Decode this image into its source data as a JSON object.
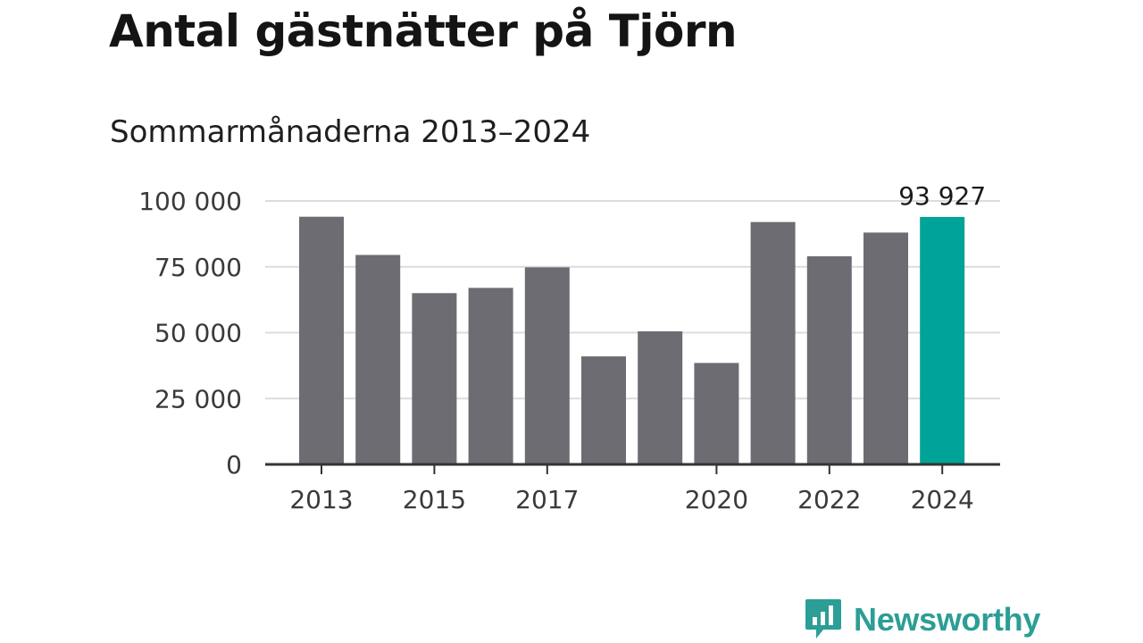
{
  "chart_data": {
    "type": "bar",
    "title": "Antal gästnätter på Tjörn",
    "subtitle": "Sommarmånaderna 2013–2024",
    "categories": [
      "2013",
      "2014",
      "2015",
      "2016",
      "2017",
      "2018",
      "2019",
      "2020",
      "2021",
      "2022",
      "2023",
      "2024"
    ],
    "values": [
      94000,
      79500,
      65000,
      67000,
      74800,
      41000,
      50500,
      38500,
      92000,
      79000,
      88000,
      93927
    ],
    "x_tick_labels": [
      "2013",
      "",
      "2015",
      "",
      "2017",
      "",
      "",
      "2020",
      "",
      "2022",
      "",
      "2024"
    ],
    "y_ticks": [
      0,
      25000,
      50000,
      75000,
      100000
    ],
    "y_tick_labels": [
      "0",
      "25 000",
      "50 000",
      "75 000",
      "100 000"
    ],
    "ylim": [
      0,
      100000
    ],
    "grid": true,
    "highlight_index": 11,
    "highlight_label": "93 927",
    "colors": {
      "bar": "#6d6c72",
      "highlight": "#00a397",
      "grid": "#dcdcdc",
      "axis": "#333333"
    }
  },
  "brand": {
    "name": "Newsworthy",
    "color": "#2b9e95",
    "icon": "chart-speech-bubble-icon"
  }
}
